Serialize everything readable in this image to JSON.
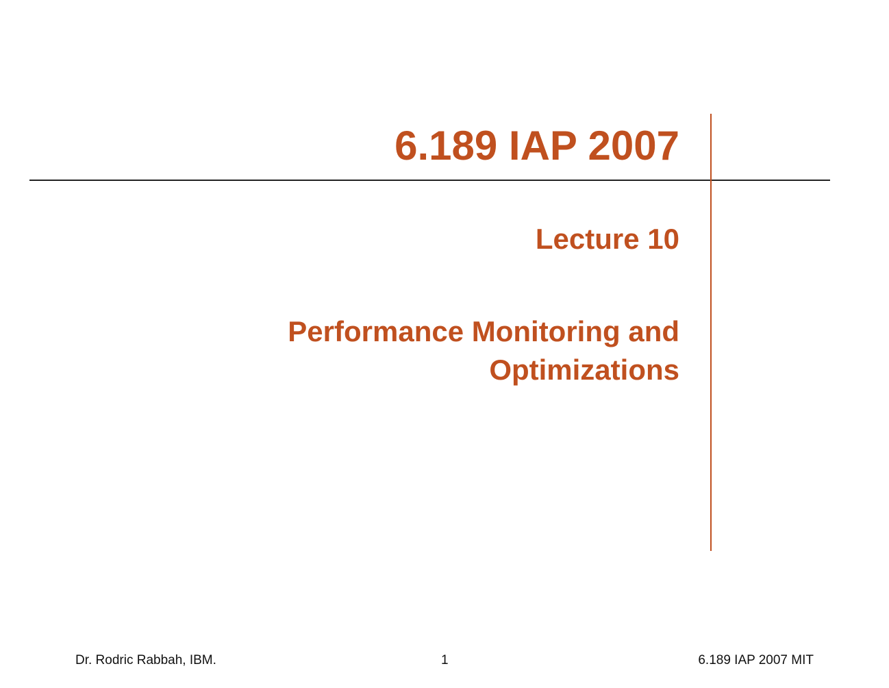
{
  "header": {
    "title": "6.189 IAP 2007"
  },
  "body": {
    "lecture": "Lecture 10",
    "subtitle_lines": [
      "Performance Monitoring and",
      "Optimizations"
    ]
  },
  "footer": {
    "left": "Dr. Rodric Rabbah, IBM.",
    "center": "1",
    "right": "6.189 IAP 2007 MIT"
  }
}
